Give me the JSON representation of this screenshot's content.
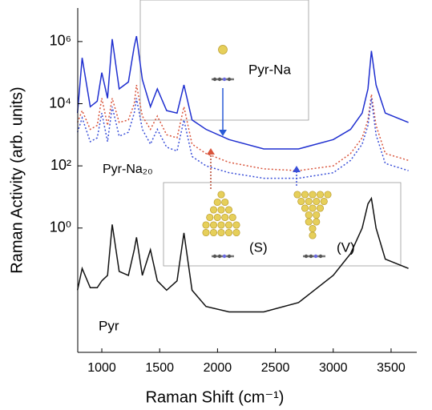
{
  "chart_data": {
    "type": "line",
    "xlabel": "Raman Shift (cm⁻¹)",
    "ylabel": "Raman Activity (arb. units)",
    "log_y": true,
    "xlim": [
      792,
      3722
    ],
    "ylim": [
      0.0001,
      12000000
    ],
    "xticks": [
      1000,
      1500,
      2000,
      2500,
      3000,
      3500
    ],
    "yticks": [
      {
        "value": 1,
        "label": "10⁰"
      },
      {
        "value": 100,
        "label": "10²"
      },
      {
        "value": 10000,
        "label": "10⁴"
      },
      {
        "value": 1000000,
        "label": "10⁶"
      }
    ],
    "annotations": [
      "Pyr-Na₂₀"
    ],
    "x": [
      790,
      830,
      900,
      960,
      1000,
      1050,
      1090,
      1150,
      1230,
      1280,
      1300,
      1350,
      1420,
      1480,
      1560,
      1650,
      1710,
      1780,
      1900,
      2100,
      2400,
      2700,
      3000,
      3150,
      3250,
      3300,
      3330,
      3370,
      3450,
      3650
    ],
    "series": [
      {
        "name": "Pyr-Na",
        "color": "#1f2fd0",
        "style": "solid",
        "values": [
          5000,
          300000,
          8000,
          12000,
          100000,
          15000,
          1200000,
          30000,
          50000,
          700000,
          1500000,
          60000,
          8000,
          30000,
          6000,
          5000,
          40000,
          3000,
          1500,
          700,
          350,
          350,
          700,
          1500,
          5000,
          30000,
          500000,
          40000,
          5000,
          2500
        ]
      },
      {
        "name": "(S)",
        "color": "#d9553c",
        "style": "dotted",
        "values": [
          2500,
          6000,
          1500,
          2000,
          15000,
          2000,
          15000,
          2500,
          3000,
          10000,
          40000,
          4000,
          1500,
          4000,
          1000,
          800,
          8000,
          500,
          250,
          130,
          80,
          70,
          100,
          250,
          800,
          3000,
          20000,
          2000,
          250,
          150
        ]
      },
      {
        "name": "(V)",
        "color": "#3a4fd8",
        "style": "dotted",
        "values": [
          1200,
          3500,
          600,
          800,
          5000,
          600,
          8000,
          900,
          1200,
          5000,
          15000,
          1500,
          500,
          1500,
          400,
          300,
          3000,
          200,
          100,
          60,
          40,
          40,
          60,
          150,
          500,
          2000,
          15000,
          1000,
          120,
          70
        ]
      },
      {
        "name": "Pyr",
        "color": "#111111",
        "style": "solid",
        "values": [
          0.01,
          0.05,
          0.012,
          0.012,
          0.02,
          0.03,
          1.3,
          0.04,
          0.03,
          0.2,
          0.5,
          0.03,
          0.2,
          0.02,
          0.01,
          0.02,
          0.7,
          0.01,
          0.003,
          0.002,
          0.002,
          0.004,
          0.03,
          0.15,
          1.0,
          6,
          9,
          1,
          0.1,
          0.05
        ]
      }
    ]
  }
}
